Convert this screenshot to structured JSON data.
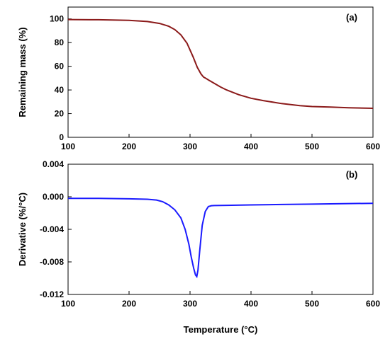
{
  "chart_data": [
    {
      "type": "line",
      "panel_label": "(a)",
      "xlabel": "",
      "ylabel": "Remaining mass (%)",
      "xlim": [
        100,
        600
      ],
      "ylim": [
        0,
        110
      ],
      "x_ticks": [
        "100",
        "200",
        "300",
        "400",
        "500",
        "600"
      ],
      "y_ticks": [
        "0",
        "20",
        "40",
        "60",
        "80",
        "100"
      ],
      "series": [
        {
          "color": "#8B1A1A",
          "x": [
            100,
            150,
            200,
            230,
            250,
            265,
            275,
            285,
            295,
            305,
            312,
            318,
            322,
            326,
            330,
            340,
            350,
            360,
            380,
            400,
            420,
            450,
            480,
            500,
            530,
            560,
            600
          ],
          "y": [
            99.5,
            99.3,
            98.8,
            97.8,
            96.2,
            93.8,
            91.0,
            86.5,
            79.5,
            68.0,
            59.0,
            53.5,
            51.0,
            49.8,
            48.5,
            45.5,
            42.5,
            40.0,
            36.0,
            33.0,
            31.0,
            28.5,
            26.8,
            26.0,
            25.5,
            25.0,
            24.5
          ]
        }
      ]
    },
    {
      "type": "line",
      "panel_label": "(b)",
      "xlabel": "Temperature (°C)",
      "ylabel": "Derivative (%/°C)",
      "xlim": [
        100,
        600
      ],
      "ylim": [
        -0.012,
        0.004
      ],
      "x_ticks": [
        "100",
        "200",
        "300",
        "400",
        "500",
        "600"
      ],
      "y_ticks": [
        "-0.012",
        "-0.008",
        "-0.004",
        "0.000",
        "0.004"
      ],
      "series": [
        {
          "color": "#1a1aff",
          "x": [
            100,
            150,
            200,
            230,
            245,
            255,
            265,
            275,
            285,
            292,
            298,
            302,
            306,
            309,
            311,
            313,
            316,
            320,
            325,
            330,
            335,
            340,
            360,
            400,
            450,
            500,
            550,
            600
          ],
          "y": [
            -0.0002,
            -0.0002,
            -0.00025,
            -0.0003,
            -0.0004,
            -0.0006,
            -0.001,
            -0.0016,
            -0.0026,
            -0.004,
            -0.0058,
            -0.0074,
            -0.0088,
            -0.0096,
            -0.0098,
            -0.009,
            -0.0065,
            -0.0035,
            -0.0018,
            -0.0012,
            -0.0011,
            -0.00108,
            -0.00105,
            -0.001,
            -0.00095,
            -0.0009,
            -0.00085,
            -0.0008
          ]
        }
      ]
    }
  ]
}
